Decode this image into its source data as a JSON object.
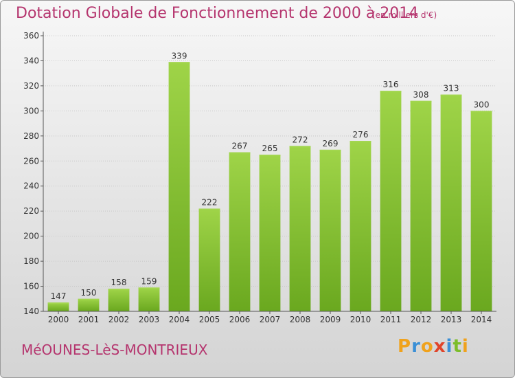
{
  "title": "Dotation Globale de Fonctionnement de 2000 à 2014",
  "subtitle": "(en milliers d'€)",
  "commune": "MéOUNES-LèS-MONTRIEUX",
  "brand": {
    "letters": [
      "P",
      "r",
      "o",
      "x",
      "i",
      "t",
      "i"
    ],
    "colors": [
      "#f0a21c",
      "#3a8fd6",
      "#f0a21c",
      "#e0442a",
      "#3a8fd6",
      "#7cbd2a",
      "#f0a21c"
    ]
  },
  "colors": {
    "bar": "#7fbf2e",
    "bar_light": "#a2d64e",
    "accent": "#b5356e"
  },
  "chart_data": {
    "type": "bar",
    "categories": [
      "2000",
      "2001",
      "2002",
      "2003",
      "2004",
      "2005",
      "2006",
      "2007",
      "2008",
      "2009",
      "2010",
      "2011",
      "2012",
      "2013",
      "2014"
    ],
    "values": [
      147,
      150,
      158,
      159,
      339,
      222,
      267,
      265,
      272,
      269,
      276,
      316,
      308,
      313,
      300
    ],
    "yticks": [
      140,
      160,
      180,
      200,
      220,
      240,
      260,
      280,
      300,
      320,
      340,
      360
    ],
    "ylim": [
      140,
      360
    ],
    "grid": true,
    "legend": "none"
  }
}
